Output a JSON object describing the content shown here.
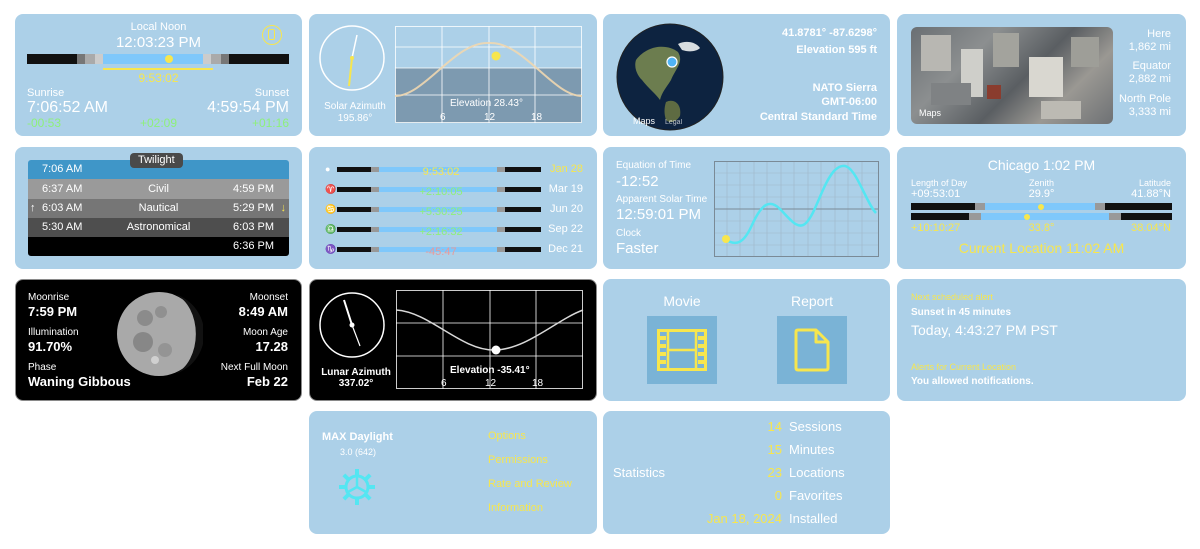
{
  "solar_noon": {
    "label": "Local Noon",
    "time": "12:03:23 PM",
    "day_length": "9:53:02",
    "sunrise_label": "Sunrise",
    "sunrise_time": "7:06:52 AM",
    "sunset_label": "Sunset",
    "sunset_time": "4:59:54 PM",
    "sunrise_delta": "-00:53",
    "length_delta": "+02:09",
    "sunset_delta": "+01:16"
  },
  "solar_azimuth": {
    "azimuth_label": "Solar Azimuth",
    "azimuth_value": "195.86°",
    "elevation_label": "Elevation 28.43°",
    "ticks": [
      "6",
      "12",
      "18"
    ]
  },
  "location": {
    "coords": "41.8781° -87.6298°",
    "elevation": "Elevation 595 ft",
    "nato": "NATO Sierra",
    "gmt": "GMT-06:00",
    "zone": "Central Standard Time",
    "maps_label": "Maps",
    "legal_label": "Legal"
  },
  "distances": {
    "maps_label": "Maps",
    "items": [
      {
        "label": "Here",
        "value": "1,862 mi"
      },
      {
        "label": "Equator",
        "value": "2,882 mi"
      },
      {
        "label": "North Pole",
        "value": "3,333 mi"
      }
    ]
  },
  "twilight": {
    "title": "Twilight",
    "sunrise": "7:06 AM",
    "rows": [
      {
        "am": "6:37 AM",
        "name": "Civil",
        "pm": "4:59 PM"
      },
      {
        "am": "6:03 AM",
        "name": "Nautical",
        "pm": "5:29 PM"
      },
      {
        "am": "5:30 AM",
        "name": "Astronomical",
        "pm": "6:03 PM"
      }
    ],
    "night": "6:36 PM",
    "up_arrow": "↑",
    "down_arrow": "↓"
  },
  "seasons": {
    "rows": [
      {
        "symbol": "●",
        "value": "9:53:02",
        "date": "Jan 28",
        "color": "#f7e64e"
      },
      {
        "symbol": "♈",
        "value": "+2:10:05",
        "date": "Mar 19",
        "color": "#8ef07a"
      },
      {
        "symbol": "♋",
        "value": "+5:30:25",
        "date": "Jun 20",
        "color": "#8ef07a"
      },
      {
        "symbol": "♎",
        "value": "+2:16:32",
        "date": "Sep 22",
        "color": "#8ef07a"
      },
      {
        "symbol": "♑",
        "value": "-45:47",
        "date": "Dec 21",
        "color": "#e99a9a"
      }
    ]
  },
  "equation": {
    "eot_label": "Equation of Time",
    "eot_value": "-12:52",
    "ast_label": "Apparent Solar Time",
    "ast_value": "12:59:01 PM",
    "clock_label": "Clock",
    "clock_value": "Faster"
  },
  "city": {
    "title": "Chicago 1:02 PM",
    "len_label": "Length of Day",
    "len_value": "+09:53:01",
    "zenith_label": "Zenith",
    "zenith_value": "29.9°",
    "lat_label": "Latitude",
    "lat_value": "41.88°N",
    "bottom_left": "+10:10:27",
    "bottom_mid": "33.8°",
    "bottom_right": "38.04°N",
    "current": "Current Location 11:02 AM"
  },
  "moon": {
    "moonrise_label": "Moonrise",
    "moonrise_value": "7:59 PM",
    "moonset_label": "Moonset",
    "moonset_value": "8:49 AM",
    "illum_label": "Illumination",
    "illum_value": "91.70%",
    "age_label": "Moon Age",
    "age_value": "17.28",
    "phase_label": "Phase",
    "phase_value": "Waning Gibbous",
    "full_label": "Next Full Moon",
    "full_value": "Feb 22"
  },
  "lunar": {
    "azimuth_label": "Lunar Azimuth",
    "azimuth_value": "337.02°",
    "elevation_label": "Elevation -35.41°",
    "ticks": [
      "6",
      "12",
      "18"
    ]
  },
  "media": {
    "movie_label": "Movie",
    "report_label": "Report"
  },
  "alerts": {
    "next_label": "Next scheduled alert",
    "next_desc": "Sunset in 45 minutes",
    "next_time": "Today, 4:43:27 PM PST",
    "current_label": "Alerts for Current Location",
    "current_desc": "You allowed notifications."
  },
  "app": {
    "name": "MAX Daylight",
    "version": "3.0 (642)",
    "links": [
      "Options",
      "Permissions",
      "Rate and Review",
      "Information"
    ]
  },
  "stats": {
    "title": "Statistics",
    "rows": [
      {
        "value": "14",
        "label": "Sessions"
      },
      {
        "value": "15",
        "label": "Minutes"
      },
      {
        "value": "23",
        "label": "Locations"
      },
      {
        "value": "0",
        "label": "Favorites"
      },
      {
        "value": "Jan 18, 2024",
        "label": "Installed"
      }
    ]
  },
  "colors": {
    "card": "#acd0e8",
    "yellow": "#f7e64e",
    "green": "#8ef07a",
    "red": "#e99a9a",
    "daylight_bar": "#7fc8fb",
    "twilight_blue": "#3f96c8"
  }
}
